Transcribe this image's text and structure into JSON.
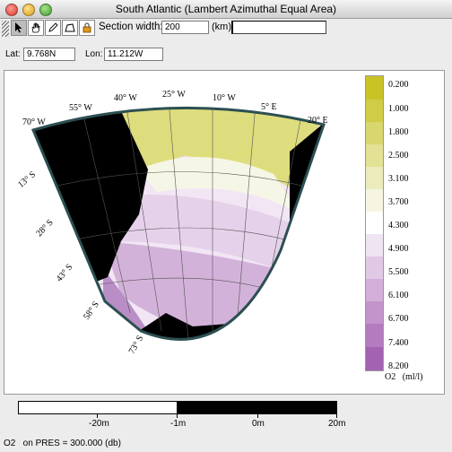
{
  "window": {
    "title": "South Atlantic (Lambert Azimuthal Equal Area)"
  },
  "toolbar": {
    "tools": [
      "pointer-tool",
      "pan-tool",
      "pencil-tool",
      "section-tool",
      "lock-tool"
    ],
    "section_width_label": "Section width:",
    "section_width_value": "200",
    "section_width_unit": "(km)"
  },
  "coords": {
    "lat_label": "Lat:",
    "lat_value": "9.768N",
    "lon_label": "Lon:",
    "lon_value": "11.212W"
  },
  "map": {
    "lon_labels": [
      "70° W",
      "55° W",
      "40° W",
      "25° W",
      "10° W",
      "5° E",
      "20° E"
    ],
    "lat_labels": [
      "13° S",
      "28° S",
      "43° S",
      "58° S",
      "73° S"
    ]
  },
  "colorbar": {
    "labels": [
      "0.200",
      "1.000",
      "1.800",
      "2.500",
      "3.100",
      "3.700",
      "4.300",
      "4.900",
      "5.500",
      "6.100",
      "6.700",
      "7.400",
      "8.200"
    ],
    "colors": [
      "#c9c325",
      "#cfcc45",
      "#d8d66c",
      "#e2e194",
      "#ebebbc",
      "#f5f5e2",
      "#ffffff",
      "#efe4f2",
      "#e1c9e6",
      "#d2aed9",
      "#c394cc",
      "#b47bbf",
      "#a462b2"
    ],
    "variable_label": "O2   (ml/l)"
  },
  "range": {
    "labels": [
      "-20m",
      "-1m",
      "0m",
      "20m"
    ]
  },
  "status": {
    "text": "O2   on PRES = 300.000 (db)"
  }
}
